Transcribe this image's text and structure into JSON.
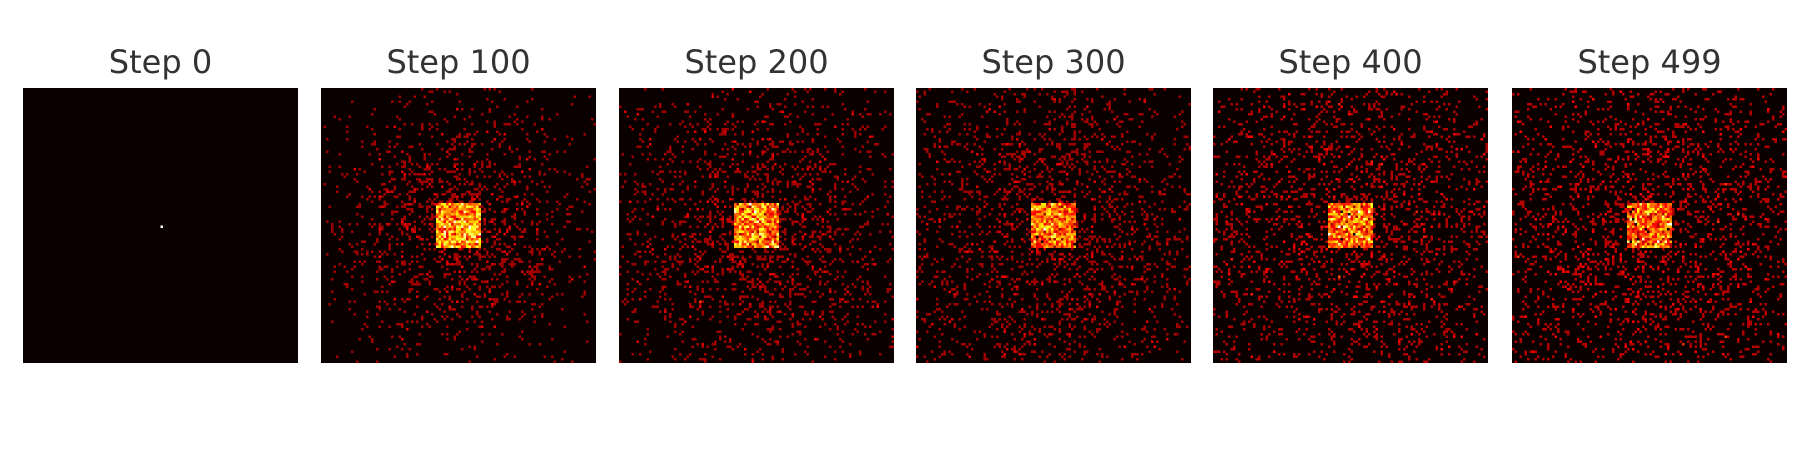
{
  "chart_data": {
    "type": "heatmap",
    "colormap": "hot",
    "background_color": "#0b0000",
    "panels": [
      {
        "title": "Step 0",
        "step": 0,
        "description": "single bright cell at center"
      },
      {
        "title": "Step 100",
        "step": 100,
        "description": "dense hot core with scattered halo"
      },
      {
        "title": "Step 200",
        "step": 200,
        "description": "core with wider sparse halo"
      },
      {
        "title": "Step 300",
        "step": 300,
        "description": "core fading, halo spreads across panel"
      },
      {
        "title": "Step 400",
        "step": 400,
        "description": "diffuse core, near-uniform scatter"
      },
      {
        "title": "Step 499",
        "step": 499,
        "description": "diffuse core, near-uniform scatter"
      }
    ],
    "grid": false,
    "axes_visible": false
  }
}
